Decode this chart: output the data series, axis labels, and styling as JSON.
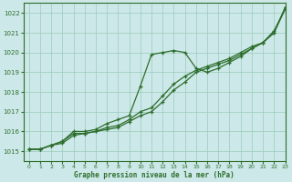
{
  "background_color": "#cde8e8",
  "grid_color": "#99ccbb",
  "line_color": "#2d6e2d",
  "xlabel": "Graphe pression niveau de la mer (hPa)",
  "ylim": [
    1014.5,
    1022.5
  ],
  "xlim": [
    -0.5,
    23
  ],
  "yticks": [
    1015,
    1016,
    1017,
    1018,
    1019,
    1020,
    1021,
    1022
  ],
  "xticks": [
    0,
    1,
    2,
    3,
    4,
    5,
    6,
    7,
    8,
    9,
    10,
    11,
    12,
    13,
    14,
    15,
    16,
    17,
    18,
    19,
    20,
    21,
    22,
    23
  ],
  "series1_x": [
    0,
    1,
    2,
    3,
    4,
    5,
    6,
    7,
    8,
    9,
    10,
    11,
    12,
    13,
    14,
    15,
    16,
    17,
    18,
    19,
    20,
    21,
    22,
    23
  ],
  "series1_y": [
    1015.1,
    1015.1,
    1015.3,
    1015.4,
    1015.8,
    1015.9,
    1016.0,
    1016.1,
    1016.2,
    1016.5,
    1016.8,
    1017.0,
    1017.5,
    1018.1,
    1018.5,
    1019.0,
    1019.2,
    1019.4,
    1019.6,
    1019.9,
    1020.2,
    1020.5,
    1021.0,
    1022.2
  ],
  "series2_x": [
    0,
    1,
    2,
    3,
    4,
    5,
    6,
    7,
    8,
    9,
    10,
    11,
    12,
    13,
    14,
    15,
    16,
    17,
    18,
    19,
    20,
    21,
    22,
    23
  ],
  "series2_y": [
    1015.1,
    1015.1,
    1015.3,
    1015.5,
    1015.9,
    1015.9,
    1016.0,
    1016.2,
    1016.3,
    1016.6,
    1017.0,
    1017.2,
    1017.8,
    1018.4,
    1018.8,
    1019.1,
    1019.3,
    1019.5,
    1019.7,
    1020.0,
    1020.3,
    1020.5,
    1021.1,
    1022.2
  ],
  "series3_x": [
    0,
    1,
    2,
    3,
    4,
    5,
    6,
    7,
    8,
    9,
    10,
    11,
    12,
    13,
    14,
    15,
    16,
    17,
    18,
    19,
    20,
    21,
    22,
    23
  ],
  "series3_y": [
    1015.1,
    1015.1,
    1015.3,
    1015.5,
    1016.0,
    1016.0,
    1016.1,
    1016.4,
    1016.6,
    1016.8,
    1018.3,
    1019.9,
    1020.0,
    1020.1,
    1020.0,
    1019.2,
    1019.0,
    1019.2,
    1019.5,
    1019.8,
    1020.2,
    1020.5,
    1021.0,
    1022.3
  ]
}
